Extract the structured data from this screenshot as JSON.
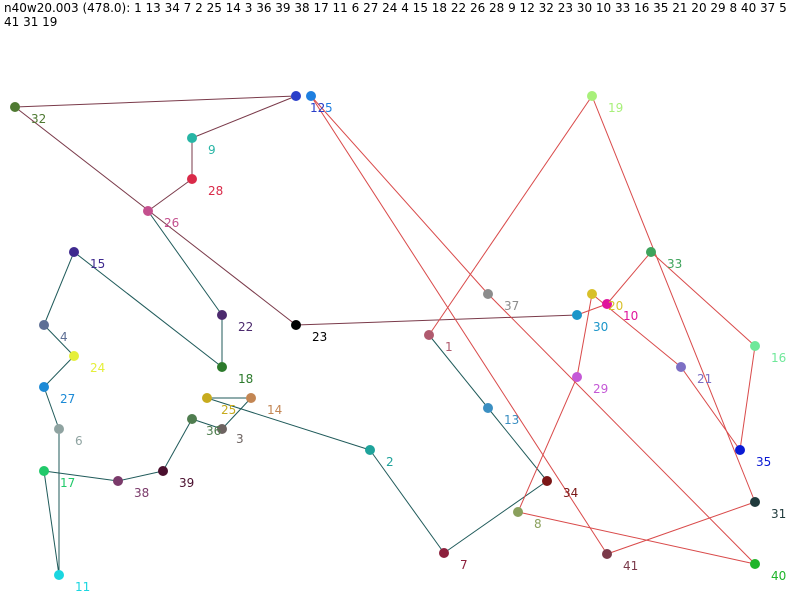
{
  "header": {
    "title": "n40w20.003 (478.0): 1 13 34 7 2 25 14 3 36 39 38 17 11 6 27 24 4 15 18 22 26 28 9 12 32 23 30 10 33 16 35 21 20 29 8 40 37 5 41 31 19"
  },
  "tour": [
    1,
    13,
    34,
    7,
    2,
    25,
    14,
    3,
    36,
    39,
    38,
    17,
    11,
    6,
    27,
    24,
    4,
    15,
    18,
    22,
    26,
    28,
    9,
    12,
    32,
    23,
    30,
    10,
    33,
    16,
    35,
    21,
    20,
    29,
    8,
    40,
    37,
    5,
    41,
    31,
    19
  ],
  "nodes": [
    {
      "id": 1,
      "label": "1",
      "color": "#b05a6e"
    },
    {
      "id": 2,
      "label": "2",
      "color": "#1fa39b"
    },
    {
      "id": 3,
      "label": "3",
      "color": "#6d6361"
    },
    {
      "id": 4,
      "label": "4",
      "color": "#5e6f95"
    },
    {
      "id": 5,
      "label": "5",
      "color": "#1e7fe0"
    },
    {
      "id": 6,
      "label": "6",
      "color": "#8fa3a1"
    },
    {
      "id": 7,
      "label": "7",
      "color": "#8c1f3c"
    },
    {
      "id": 8,
      "label": "8",
      "color": "#8aa05c"
    },
    {
      "id": 9,
      "label": "9",
      "color": "#27b5a5"
    },
    {
      "id": 10,
      "label": "10",
      "color": "#e0159c"
    },
    {
      "id": 11,
      "label": "11",
      "color": "#1ad6e0"
    },
    {
      "id": 12,
      "label": "12",
      "color": "#2a3ec9"
    },
    {
      "id": 13,
      "label": "13",
      "color": "#3b8fc2"
    },
    {
      "id": 14,
      "label": "14",
      "color": "#c38653"
    },
    {
      "id": 15,
      "label": "15",
      "color": "#3f2a8f"
    },
    {
      "id": 16,
      "label": "16",
      "color": "#6fe89a"
    },
    {
      "id": 17,
      "label": "17",
      "color": "#21c96a"
    },
    {
      "id": 18,
      "label": "18",
      "color": "#2c7a2c"
    },
    {
      "id": 19,
      "label": "19",
      "color": "#a8f07a"
    },
    {
      "id": 20,
      "label": "20",
      "color": "#d8c02a"
    },
    {
      "id": 21,
      "label": "21",
      "color": "#7d6fc4"
    },
    {
      "id": 22,
      "label": "22",
      "color": "#4c2a6e"
    },
    {
      "id": 23,
      "label": "23",
      "color": "#000000"
    },
    {
      "id": 24,
      "label": "24",
      "color": "#e5ef3b"
    },
    {
      "id": 25,
      "label": "25",
      "color": "#c7ab1e"
    },
    {
      "id": 26,
      "label": "26",
      "color": "#c4508e"
    },
    {
      "id": 27,
      "label": "27",
      "color": "#1c8ad6"
    },
    {
      "id": 28,
      "label": "28",
      "color": "#d92a49"
    },
    {
      "id": 29,
      "label": "29",
      "color": "#c458d6"
    },
    {
      "id": 30,
      "label": "30",
      "color": "#1b95c9"
    },
    {
      "id": 31,
      "label": "31",
      "color": "#1f3a3c"
    },
    {
      "id": 32,
      "label": "32",
      "color": "#4f7a32"
    },
    {
      "id": 33,
      "label": "33",
      "color": "#3fa35c"
    },
    {
      "id": 34,
      "label": "34",
      "color": "#7a1616"
    },
    {
      "id": 35,
      "label": "35",
      "color": "#0a1ad4"
    },
    {
      "id": 36,
      "label": "36",
      "color": "#4f7d4f"
    },
    {
      "id": 37,
      "label": "37",
      "color": "#8c8c8c"
    },
    {
      "id": 38,
      "label": "38",
      "color": "#7a3a6a"
    },
    {
      "id": 39,
      "label": "39",
      "color": "#4a0f2e"
    },
    {
      "id": 40,
      "label": "40",
      "color": "#1eb52a"
    },
    {
      "id": 41,
      "label": "41",
      "color": "#7a3a4a"
    }
  ]
}
